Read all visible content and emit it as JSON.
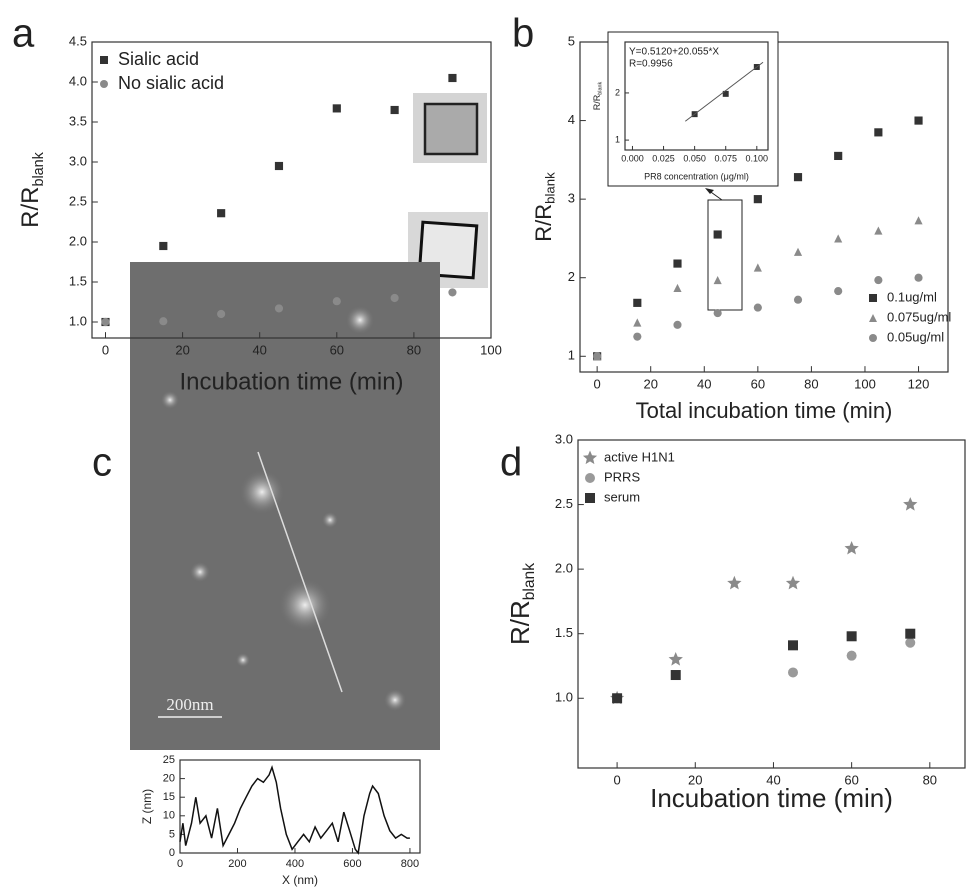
{
  "chart_data": [
    {
      "type": "scatter",
      "panel_label": "a",
      "xlabel": "Incubation time (min)",
      "ylabel": "R/R",
      "ylabel_sub": "blank",
      "xlim": [
        -3.5,
        100
      ],
      "ylim": [
        0.8,
        4.5
      ],
      "xticks": [
        0,
        20,
        40,
        60,
        80,
        100
      ],
      "yticks": [
        {
          "value": 1,
          "label": "1.0"
        },
        1.5,
        {
          "value": 2,
          "label": "2.0"
        },
        2.5,
        {
          "value": 3,
          "label": "3.0"
        },
        3.5,
        {
          "value": 4,
          "label": "4.0"
        },
        4.5
      ],
      "legend": "upper left",
      "series": [
        {
          "name": "Sialic acid",
          "color": "#333333",
          "marker": "square",
          "x": [
            0,
            15,
            30,
            45,
            60,
            75,
            90
          ],
          "values": [
            1.0,
            1.95,
            2.36,
            2.95,
            3.67,
            3.65,
            4.05
          ]
        },
        {
          "name": "No sialic acid",
          "color": "#8a8a8a",
          "marker": "circle",
          "x": [
            0,
            15,
            30,
            45,
            60,
            75,
            90
          ],
          "values": [
            1.0,
            1.01,
            1.1,
            1.17,
            1.26,
            1.3,
            1.37
          ]
        }
      ]
    },
    {
      "type": "scatter",
      "panel_label": "b",
      "xlabel": "Total incubation time (min)",
      "ylabel": "R/R",
      "ylabel_sub": "blank",
      "xlim": [
        -6.4,
        131
      ],
      "ylim": [
        0.8,
        5
      ],
      "xticks": [
        0,
        20,
        40,
        60,
        80,
        100,
        120
      ],
      "yticks": [
        1,
        2,
        3,
        4,
        5
      ],
      "legend": "lower right",
      "series": [
        {
          "name": "0.1ug/ml",
          "color": "#333333",
          "marker": "square",
          "x": [
            0,
            15,
            30,
            45,
            60,
            75,
            90,
            105,
            120
          ],
          "values": [
            1.0,
            1.68,
            2.18,
            2.55,
            3.0,
            3.28,
            3.55,
            3.85,
            4.0
          ]
        },
        {
          "name": "0.075ug/ml",
          "color": "#8a8a8a",
          "marker": "triangle",
          "x": [
            0,
            15,
            30,
            45,
            60,
            75,
            90,
            105,
            120
          ],
          "values": [
            1.0,
            1.43,
            1.87,
            1.97,
            2.13,
            2.33,
            2.5,
            2.6,
            2.73
          ]
        },
        {
          "name": "0.05ug/ml",
          "color": "#8a8a8a",
          "marker": "circle",
          "x": [
            0,
            15,
            30,
            45,
            60,
            75,
            90,
            105,
            120
          ],
          "values": [
            1.0,
            1.25,
            1.4,
            1.55,
            1.62,
            1.72,
            1.83,
            1.97,
            2.0
          ]
        }
      ]
    },
    {
      "type": "scatter",
      "xlabel": "PR8 concentration (μg/ml)",
      "ylabel": "R/R",
      "ylabel_sub": "blank",
      "annotations": [
        "Y=0.5120+20.055*X",
        "R=0.9956"
      ],
      "fit_line": true,
      "xlim": [
        -0.006,
        0.109
      ],
      "ylim": [
        0.79,
        3.08
      ],
      "xticks": [
        {
          "value": 0,
          "label": "0.000"
        },
        0.025,
        {
          "value": 0.05,
          "label": "0.050"
        },
        0.075,
        {
          "value": 0.1,
          "label": "0.100"
        }
      ],
      "yticks": [
        1,
        2
      ],
      "series": [
        {
          "color": "#333333",
          "marker": "square",
          "x": [
            0.05,
            0.075,
            0.1
          ],
          "values": [
            1.55,
            1.98,
            2.55
          ]
        }
      ]
    },
    {
      "type": "line",
      "panel_label": "c",
      "scale_label": "200nm",
      "xlabel": "X (nm)",
      "ylabel": "Z (nm)",
      "xlim": [
        0,
        835
      ],
      "ylim": [
        0,
        25
      ],
      "xticks": [
        0,
        200,
        400,
        600,
        800
      ],
      "yticks": [
        0,
        5,
        10,
        15,
        20,
        25
      ],
      "series": [
        {
          "color": "#111111",
          "x": [
            0,
            10,
            20,
            40,
            55,
            70,
            90,
            110,
            130,
            150,
            170,
            190,
            210,
            230,
            250,
            270,
            290,
            310,
            320,
            335,
            350,
            370,
            390,
            410,
            430,
            450,
            470,
            490,
            510,
            530,
            550,
            570,
            590,
            610,
            620,
            640,
            660,
            670,
            690,
            710,
            730,
            750,
            770,
            790,
            800
          ],
          "values": [
            3,
            8,
            2,
            8,
            15,
            8,
            10,
            4,
            12,
            2,
            5,
            8,
            12,
            15,
            18,
            20,
            19,
            21,
            23,
            19,
            12,
            5,
            1,
            3,
            5,
            3,
            7,
            4,
            6,
            8,
            3,
            11,
            6,
            1,
            0,
            10,
            16,
            18,
            16,
            10,
            6,
            4,
            5,
            4,
            4
          ]
        }
      ]
    },
    {
      "type": "scatter",
      "panel_label": "d",
      "xlabel": "Incubation time (min)",
      "ylabel": "R/R",
      "ylabel_sub": "blank",
      "xlim": [
        -10,
        89
      ],
      "ylim": [
        0.46,
        3.0
      ],
      "xticks": [
        0,
        20,
        40,
        60,
        80
      ],
      "yticks": [
        {
          "value": 1,
          "label": "1.0"
        },
        1.5,
        {
          "value": 2,
          "label": "2.0"
        },
        2.5,
        {
          "value": 3,
          "label": "3.0"
        }
      ],
      "legend": "upper left",
      "series": [
        {
          "name": "active H1N1",
          "color": "#8a8a8a",
          "marker": "star",
          "x": [
            0,
            15,
            30,
            45,
            60,
            75
          ],
          "values": [
            1.0,
            1.3,
            1.89,
            1.89,
            2.16,
            2.5
          ]
        },
        {
          "name": "PRRS",
          "color": "#9a9a9a",
          "marker": "circle",
          "x": [
            0,
            45,
            60,
            75
          ],
          "values": [
            1.0,
            1.2,
            1.33,
            1.43
          ]
        },
        {
          "name": "serum",
          "color": "#333333",
          "marker": "square",
          "x": [
            0,
            15,
            45,
            60,
            75
          ],
          "values": [
            1.0,
            1.18,
            1.41,
            1.48,
            1.5
          ]
        }
      ]
    }
  ]
}
